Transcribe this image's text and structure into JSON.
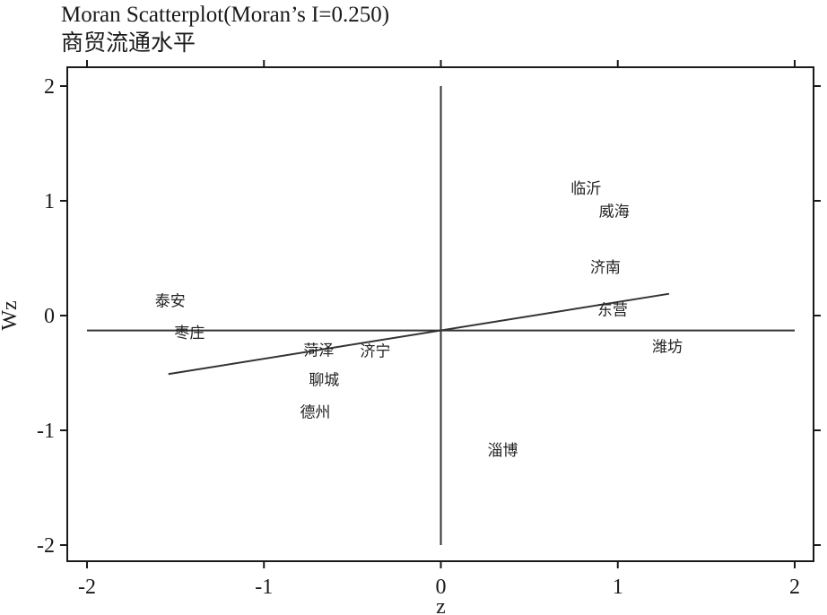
{
  "chart_data": {
    "type": "scatter",
    "title": "Moran Scatterplot(Moran’s I=0.250)",
    "subtitle": "商贸流通水平",
    "xlabel": "z",
    "ylabel": "Wz",
    "xlim": [
      -2,
      2
    ],
    "ylim": [
      -2,
      2
    ],
    "xticks": [
      -2,
      -1,
      0,
      1,
      2
    ],
    "yticks": [
      -2,
      -1,
      0,
      1,
      2
    ],
    "xtick_labels": [
      "-2",
      "-1",
      "0",
      "1",
      "2"
    ],
    "ytick_labels": [
      "-2",
      "-1",
      "0",
      "1",
      "2"
    ],
    "grid": false,
    "points": [
      {
        "label": "临沂",
        "x": 0.82,
        "y": 1.11
      },
      {
        "label": "威海",
        "x": 0.98,
        "y": 0.91
      },
      {
        "label": "济南",
        "x": 0.93,
        "y": 0.42
      },
      {
        "label": "东营",
        "x": 0.97,
        "y": 0.05
      },
      {
        "label": "潍坊",
        "x": 1.28,
        "y": -0.27
      },
      {
        "label": "泰安",
        "x": -1.53,
        "y": 0.13
      },
      {
        "label": "枣庄",
        "x": -1.42,
        "y": -0.15
      },
      {
        "label": "菏泽",
        "x": -0.69,
        "y": -0.3
      },
      {
        "label": "济宁",
        "x": -0.37,
        "y": -0.31
      },
      {
        "label": "聊城",
        "x": -0.66,
        "y": -0.56
      },
      {
        "label": "德州",
        "x": -0.71,
        "y": -0.84
      },
      {
        "label": "淄博",
        "x": 0.35,
        "y": -1.17
      }
    ],
    "reference_lines": {
      "horizontal_y": -0.13,
      "vertical_x": 0
    },
    "fit_line": {
      "x": [
        -1.54,
        1.29
      ],
      "y": [
        -0.51,
        0.19
      ]
    },
    "colors": {
      "line": "#333333",
      "frame": "#1a1a1a",
      "text": "#1a1a1a"
    }
  }
}
